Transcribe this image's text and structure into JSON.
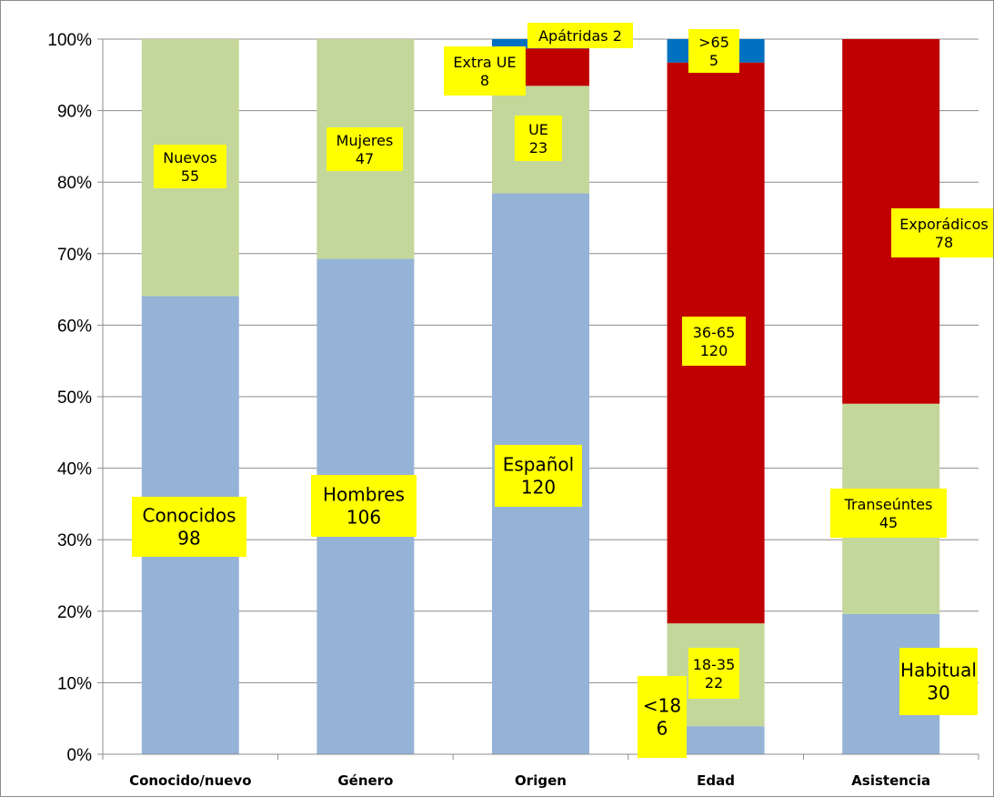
{
  "chart_data": {
    "type": "bar",
    "stacked": "percent",
    "categories": [
      "Conocido/nuevo",
      "Género",
      "Origen",
      "Edad",
      "Asistencia"
    ],
    "ylim": [
      0,
      100
    ],
    "yticks": [
      "0%",
      "10%",
      "20%",
      "30%",
      "40%",
      "50%",
      "60%",
      "70%",
      "80%",
      "90%",
      "100%"
    ],
    "grid": true,
    "colors": {
      "blue": "#95b3d7",
      "green": "#c4d79b",
      "red": "#c00000",
      "darkblue": "#0070c0",
      "label_bg": "#ffff00"
    },
    "stacks": [
      {
        "category": "Conocido/nuevo",
        "segments": [
          {
            "label": "Conocidos",
            "value": 98,
            "color": "blue"
          },
          {
            "label": "Nuevos",
            "value": 55,
            "color": "green"
          }
        ]
      },
      {
        "category": "Género",
        "segments": [
          {
            "label": "Hombres",
            "value": 106,
            "color": "blue"
          },
          {
            "label": "Mujeres",
            "value": 47,
            "color": "green"
          }
        ]
      },
      {
        "category": "Origen",
        "segments": [
          {
            "label": "Español",
            "value": 120,
            "color": "blue"
          },
          {
            "label": "UE",
            "value": 23,
            "color": "green"
          },
          {
            "label": "Extra UE",
            "value": 8,
            "color": "red"
          },
          {
            "label": "Apátridas",
            "value": 2,
            "color": "darkblue"
          }
        ]
      },
      {
        "category": "Edad",
        "segments": [
          {
            "label": "<18",
            "value": 6,
            "color": "blue"
          },
          {
            "label": "18-35",
            "value": 22,
            "color": "green"
          },
          {
            "label": "36-65",
            "value": 120,
            "color": "red"
          },
          {
            "label": ">65",
            "value": 5,
            "color": "darkblue"
          }
        ]
      },
      {
        "category": "Asistencia",
        "segments": [
          {
            "label": "Habitual",
            "value": 30,
            "color": "blue"
          },
          {
            "label": "Transeúntes",
            "value": 45,
            "color": "green"
          },
          {
            "label": "Exporádicos",
            "value": 78,
            "color": "red"
          }
        ]
      }
    ]
  }
}
